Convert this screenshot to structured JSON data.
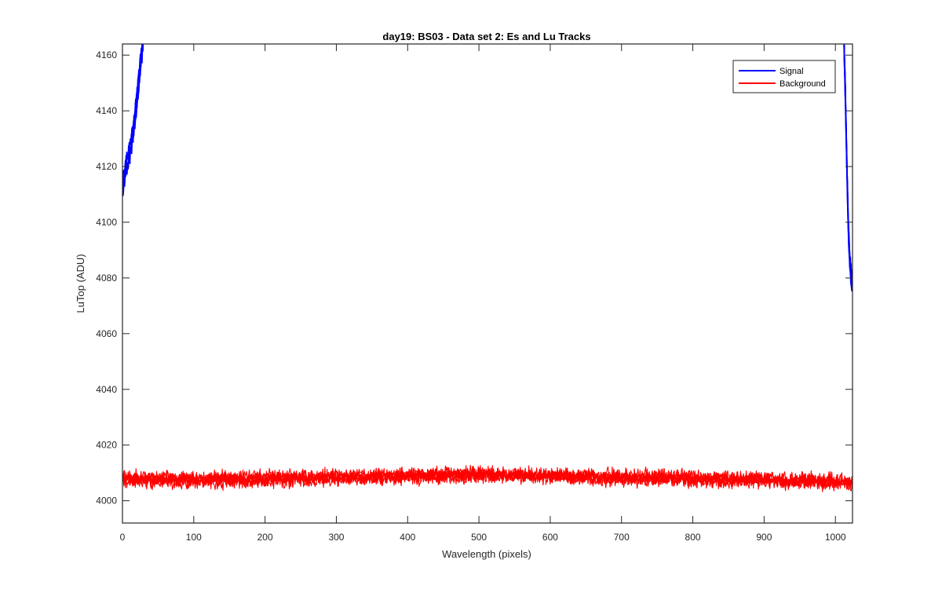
{
  "chart_data": {
    "type": "line",
    "title": "day19: BS03 - Data set 2: Es and Lu Tracks",
    "xlabel": "Wavelength (pixels)",
    "ylabel": "LuTop (ADU)",
    "xlim": [
      0,
      1024
    ],
    "ylim": [
      3992,
      4164
    ],
    "xticks": [
      0,
      100,
      200,
      300,
      400,
      500,
      600,
      700,
      800,
      900,
      1000
    ],
    "yticks": [
      4000,
      4020,
      4040,
      4060,
      4080,
      4100,
      4120,
      4140,
      4160
    ],
    "grid": false,
    "legend": {
      "position": "top-right",
      "entries": [
        "Signal",
        "Background"
      ]
    },
    "series": [
      {
        "name": "Signal",
        "color": "#0000ff",
        "traces": 6,
        "segments": [
          {
            "x": [
              0,
              3,
              6,
              9,
              12,
              15,
              18,
              21,
              24,
              27,
              29
            ],
            "y": [
              4112,
              4116,
              4120,
              4123,
              4127,
              4132,
              4138,
              4145,
              4153,
              4160,
              4164
            ]
          },
          {
            "x": [
              1012,
              1014,
              1016,
              1018,
              1020,
              1022,
              1024
            ],
            "y": [
              4164,
              4145,
              4120,
              4098,
              4086,
              4080,
              4078
            ]
          }
        ]
      },
      {
        "name": "Background",
        "color": "#ff0000",
        "traces": 6,
        "x": [
          0,
          100,
          200,
          300,
          400,
          500,
          600,
          700,
          800,
          900,
          1000,
          1024
        ],
        "y": [
          4008,
          4007.5,
          4008,
          4008.5,
          4009,
          4009.5,
          4009,
          4008.5,
          4008,
          4007.5,
          4007,
          4006.5
        ]
      }
    ]
  }
}
